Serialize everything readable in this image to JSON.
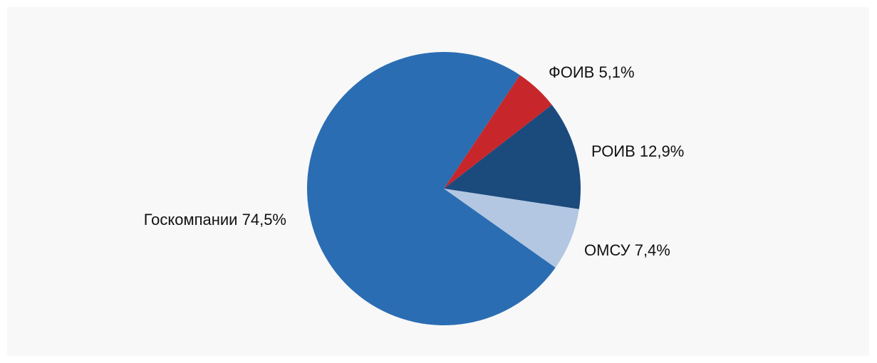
{
  "chart_data": {
    "type": "pie",
    "categories": [
      "ФОИВ",
      "РОИВ",
      "ОМСУ",
      "Госкомпании"
    ],
    "values": [
      5.1,
      12.9,
      7.4,
      74.5
    ],
    "value_labels": [
      "5,1%",
      "12,9%",
      "7,4%",
      "74,5%"
    ],
    "colors": [
      "#c7272a",
      "#1b4a7d",
      "#b3c7e2",
      "#2a6db3"
    ]
  }
}
